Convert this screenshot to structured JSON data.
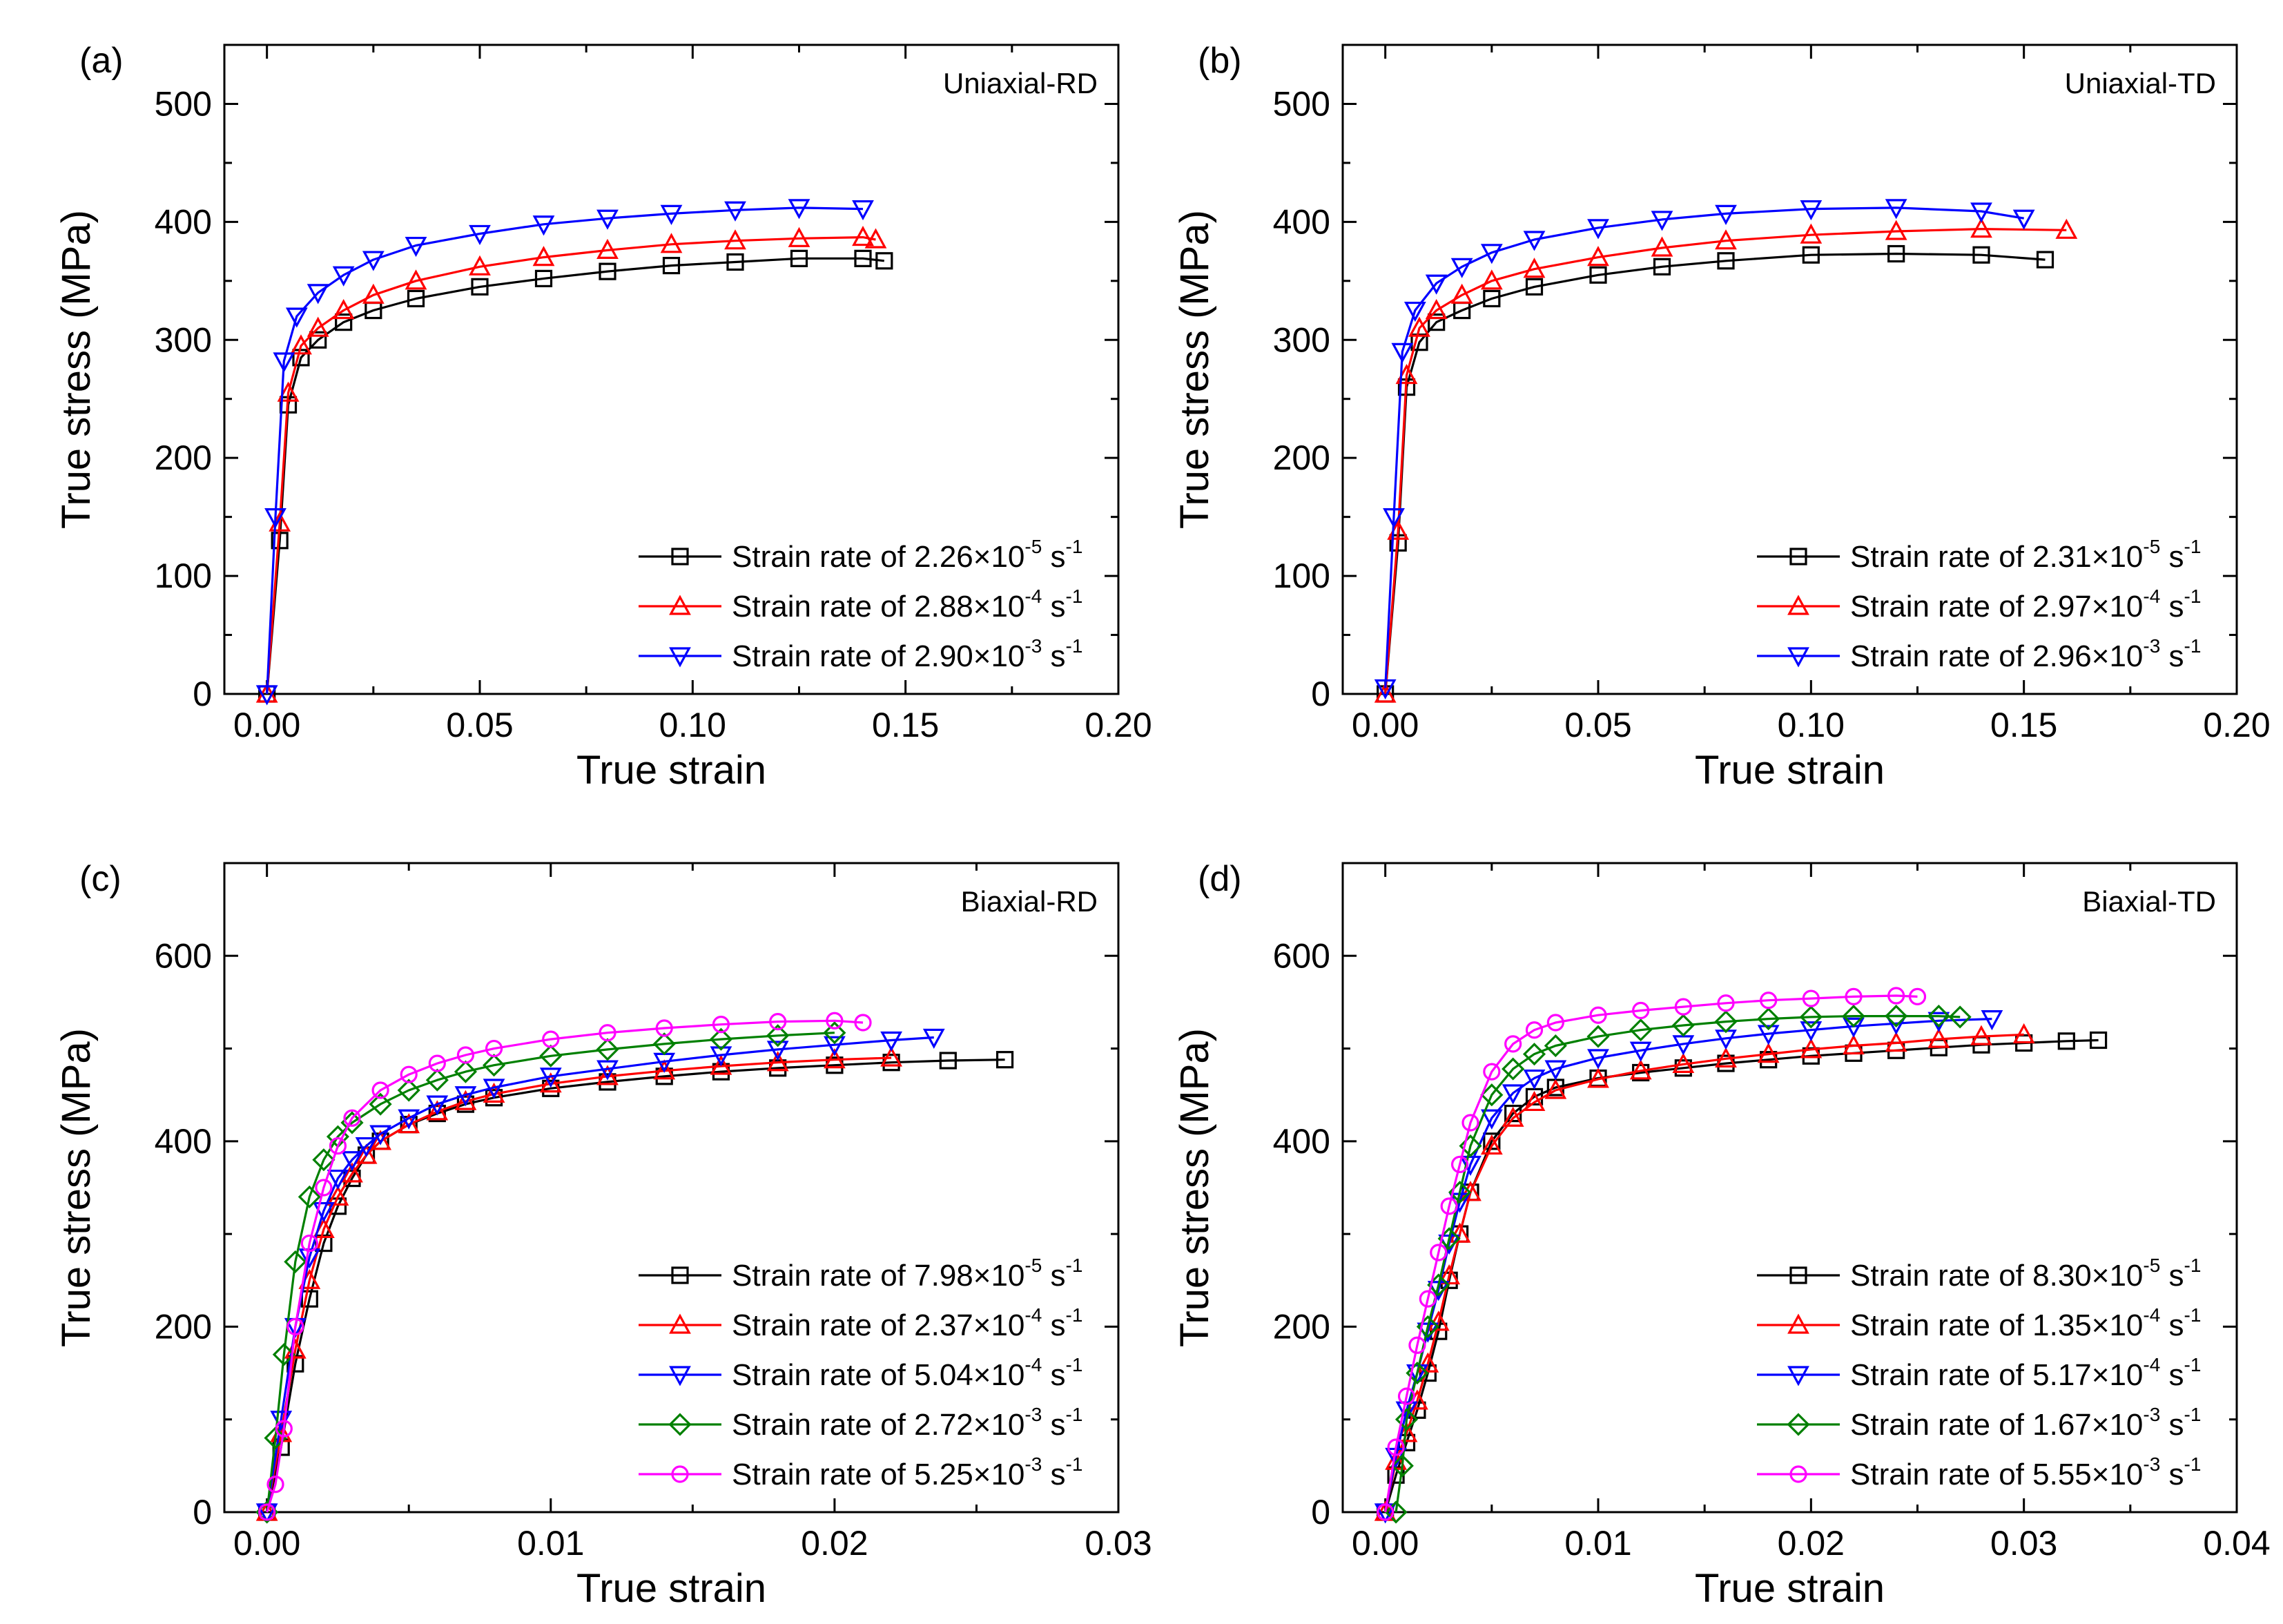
{
  "chart_data": [
    {
      "panel": "(a)",
      "type": "line",
      "tag": "Uniaxial-RD",
      "xlabel": "True strain",
      "ylabel": "True stress (MPa)",
      "xlim": [
        -0.01,
        0.2
      ],
      "ylim": [
        0,
        550
      ],
      "xticks": [
        0.0,
        0.05,
        0.1,
        0.15,
        0.2
      ],
      "xtick_labels": [
        "0.00",
        "0.05",
        "0.10",
        "0.15",
        "0.20"
      ],
      "yticks": [
        0,
        100,
        200,
        300,
        400,
        500
      ],
      "ytick_labels": [
        "0",
        "100",
        "200",
        "300",
        "400",
        "500"
      ],
      "legend_position": "lower-right",
      "series": [
        {
          "name": "Strain rate of 2.26×10-5 s-1",
          "label_text": "Strain rate of 2.26×10",
          "exp": "-5",
          "unit": " s",
          "unit_exp": "-1",
          "color": "#000000",
          "marker": "square",
          "x": [
            0,
            0.003,
            0.005,
            0.008,
            0.012,
            0.018,
            0.025,
            0.035,
            0.05,
            0.065,
            0.08,
            0.095,
            0.11,
            0.125,
            0.14,
            0.145
          ],
          "y": [
            0,
            130,
            245,
            285,
            300,
            315,
            325,
            335,
            345,
            352,
            358,
            363,
            366,
            369,
            369,
            367
          ]
        },
        {
          "name": "Strain rate of 2.88×10-4 s-1",
          "label_text": "Strain rate of 2.88×10",
          "exp": "-4",
          "unit": " s",
          "unit_exp": "-1",
          "color": "#ff0000",
          "marker": "triangle-up",
          "x": [
            0,
            0.003,
            0.005,
            0.008,
            0.012,
            0.018,
            0.025,
            0.035,
            0.05,
            0.065,
            0.08,
            0.095,
            0.11,
            0.125,
            0.14,
            0.143
          ],
          "y": [
            0,
            145,
            255,
            295,
            310,
            325,
            338,
            350,
            362,
            370,
            376,
            381,
            384,
            386,
            387,
            385
          ]
        },
        {
          "name": "Strain rate of 2.90×10-3 s-1",
          "label_text": "Strain rate of 2.90×10",
          "exp": "-3",
          "unit": " s",
          "unit_exp": "-1",
          "color": "#0000ff",
          "marker": "triangle-down",
          "x": [
            0,
            0.002,
            0.004,
            0.007,
            0.012,
            0.018,
            0.025,
            0.035,
            0.05,
            0.065,
            0.08,
            0.095,
            0.11,
            0.125,
            0.14
          ],
          "y": [
            0,
            150,
            282,
            320,
            340,
            355,
            368,
            380,
            390,
            398,
            403,
            407,
            410,
            412,
            411
          ]
        }
      ]
    },
    {
      "panel": "(b)",
      "type": "line",
      "tag": "Uniaxial-TD",
      "xlabel": "True strain",
      "ylabel": "True stress (MPa)",
      "xlim": [
        -0.01,
        0.2
      ],
      "ylim": [
        0,
        550
      ],
      "xticks": [
        0.0,
        0.05,
        0.1,
        0.15,
        0.2
      ],
      "xtick_labels": [
        "0.00",
        "0.05",
        "0.10",
        "0.15",
        "0.20"
      ],
      "yticks": [
        0,
        100,
        200,
        300,
        400,
        500
      ],
      "ytick_labels": [
        "0",
        "100",
        "200",
        "300",
        "400",
        "500"
      ],
      "legend_position": "lower-right",
      "series": [
        {
          "name": "Strain rate of 2.31×10-5 s-1",
          "label_text": "Strain rate of 2.31×10",
          "exp": "-5",
          "unit": " s",
          "unit_exp": "-1",
          "color": "#000000",
          "marker": "square",
          "x": [
            0,
            0.003,
            0.005,
            0.008,
            0.012,
            0.018,
            0.025,
            0.035,
            0.05,
            0.065,
            0.08,
            0.1,
            0.12,
            0.14,
            0.155
          ],
          "y": [
            0,
            128,
            260,
            298,
            315,
            325,
            335,
            345,
            355,
            362,
            367,
            372,
            373,
            372,
            368
          ]
        },
        {
          "name": "Strain rate of 2.97×10-4 s-1",
          "label_text": "Strain rate of 2.97×10",
          "exp": "-4",
          "unit": " s",
          "unit_exp": "-1",
          "color": "#ff0000",
          "marker": "triangle-up",
          "x": [
            0,
            0.003,
            0.005,
            0.008,
            0.012,
            0.018,
            0.025,
            0.035,
            0.05,
            0.065,
            0.08,
            0.1,
            0.12,
            0.14,
            0.16
          ],
          "y": [
            0,
            138,
            270,
            310,
            325,
            338,
            350,
            360,
            370,
            378,
            384,
            389,
            392,
            394,
            393
          ]
        },
        {
          "name": "Strain rate of 2.96×10-3 s-1",
          "label_text": "Strain rate of 2.96×10",
          "exp": "-3",
          "unit": " s",
          "unit_exp": "-1",
          "color": "#0000ff",
          "marker": "triangle-down",
          "x": [
            0,
            0.002,
            0.004,
            0.007,
            0.012,
            0.018,
            0.025,
            0.035,
            0.05,
            0.065,
            0.08,
            0.1,
            0.12,
            0.14,
            0.15
          ],
          "y": [
            5,
            150,
            290,
            325,
            348,
            362,
            374,
            385,
            395,
            402,
            407,
            411,
            412,
            409,
            403
          ]
        }
      ]
    },
    {
      "panel": "(c)",
      "type": "line",
      "tag": "Biaxial-RD",
      "xlabel": "True strain",
      "ylabel": "True stress (MPa)",
      "xlim": [
        -0.0015,
        0.03
      ],
      "ylim": [
        0,
        700
      ],
      "xticks": [
        0.0,
        0.01,
        0.02,
        0.03
      ],
      "xtick_labels": [
        "0.00",
        "0.01",
        "0.02",
        "0.03"
      ],
      "yticks": [
        0,
        200,
        400,
        600
      ],
      "ytick_labels": [
        "0",
        "200",
        "400",
        "600"
      ],
      "legend_position": "lower-right",
      "series": [
        {
          "name": "Strain rate of 7.98×10-5 s-1",
          "label_text": "Strain rate of 7.98×10",
          "exp": "-5",
          "unit": " s",
          "unit_exp": "-1",
          "color": "#000000",
          "marker": "square",
          "x": [
            0,
            0.0005,
            0.001,
            0.0015,
            0.002,
            0.0025,
            0.003,
            0.0035,
            0.004,
            0.005,
            0.006,
            0.007,
            0.008,
            0.01,
            0.012,
            0.014,
            0.016,
            0.018,
            0.02,
            0.022,
            0.024,
            0.026
          ],
          "y": [
            0,
            70,
            160,
            230,
            290,
            330,
            360,
            385,
            400,
            418,
            430,
            440,
            447,
            457,
            464,
            470,
            475,
            479,
            482,
            485,
            487,
            488
          ]
        },
        {
          "name": "Strain rate of 2.37×10-4 s-1",
          "label_text": "Strain rate of 2.37×10",
          "exp": "-4",
          "unit": " s",
          "unit_exp": "-1",
          "color": "#ff0000",
          "marker": "triangle-up",
          "x": [
            0,
            0.0005,
            0.001,
            0.0015,
            0.002,
            0.0025,
            0.003,
            0.0035,
            0.004,
            0.005,
            0.006,
            0.007,
            0.008,
            0.01,
            0.012,
            0.014,
            0.016,
            0.018,
            0.02,
            0.022
          ],
          "y": [
            0,
            85,
            175,
            250,
            305,
            340,
            365,
            385,
            400,
            418,
            432,
            443,
            451,
            462,
            470,
            476,
            481,
            485,
            488,
            490
          ]
        },
        {
          "name": "Strain rate of 5.04×10-4 s-1",
          "label_text": "Strain rate of 5.04×10",
          "exp": "-4",
          "unit": " s",
          "unit_exp": "-1",
          "color": "#0000ff",
          "marker": "triangle-down",
          "x": [
            0,
            0.0005,
            0.001,
            0.0015,
            0.002,
            0.0025,
            0.003,
            0.0035,
            0.004,
            0.005,
            0.006,
            0.007,
            0.008,
            0.01,
            0.012,
            0.014,
            0.016,
            0.018,
            0.02,
            0.022,
            0.0235
          ],
          "y": [
            0,
            100,
            200,
            275,
            325,
            360,
            380,
            395,
            408,
            425,
            440,
            450,
            458,
            470,
            478,
            486,
            493,
            499,
            504,
            509,
            512
          ]
        },
        {
          "name": "Strain rate of 2.72×10-3 s-1",
          "label_text": "Strain rate of 2.72×10",
          "exp": "-3",
          "unit": " s",
          "unit_exp": "-1",
          "color": "#008000",
          "marker": "diamond",
          "x": [
            0,
            0.0003,
            0.0006,
            0.001,
            0.0015,
            0.002,
            0.0025,
            0.003,
            0.004,
            0.005,
            0.006,
            0.007,
            0.008,
            0.01,
            0.012,
            0.014,
            0.016,
            0.018,
            0.02
          ],
          "y": [
            0,
            80,
            170,
            270,
            340,
            380,
            405,
            420,
            440,
            455,
            466,
            475,
            482,
            492,
            499,
            505,
            510,
            514,
            517
          ]
        },
        {
          "name": "Strain rate of 5.25×10-3 s-1",
          "label_text": "Strain rate of 5.25×10",
          "exp": "-3",
          "unit": " s",
          "unit_exp": "-1",
          "color": "#ff00ff",
          "marker": "circle",
          "x": [
            0,
            0.0003,
            0.0006,
            0.001,
            0.0015,
            0.002,
            0.0025,
            0.003,
            0.004,
            0.005,
            0.006,
            0.007,
            0.008,
            0.01,
            0.012,
            0.014,
            0.016,
            0.018,
            0.02,
            0.021
          ],
          "y": [
            0,
            30,
            90,
            200,
            290,
            350,
            395,
            425,
            455,
            472,
            484,
            493,
            500,
            510,
            517,
            522,
            526,
            529,
            530,
            528
          ]
        }
      ]
    },
    {
      "panel": "(d)",
      "type": "line",
      "tag": "Biaxial-TD",
      "xlabel": "True strain",
      "ylabel": "True stress (MPa)",
      "xlim": [
        -0.002,
        0.04
      ],
      "ylim": [
        0,
        700
      ],
      "xticks": [
        0.0,
        0.01,
        0.02,
        0.03,
        0.04
      ],
      "xtick_labels": [
        "0.00",
        "0.01",
        "0.02",
        "0.03",
        "0.04"
      ],
      "yticks": [
        0,
        200,
        400,
        600
      ],
      "ytick_labels": [
        "0",
        "200",
        "400",
        "600"
      ],
      "legend_position": "lower-right",
      "series": [
        {
          "name": "Strain rate of 8.30×10-5 s-1",
          "label_text": "Strain rate of 8.30×10",
          "exp": "-5",
          "unit": " s",
          "unit_exp": "-1",
          "color": "#000000",
          "marker": "square",
          "x": [
            0,
            0.0005,
            0.001,
            0.0015,
            0.002,
            0.0025,
            0.003,
            0.0035,
            0.004,
            0.005,
            0.006,
            0.007,
            0.008,
            0.01,
            0.012,
            0.014,
            0.016,
            0.018,
            0.02,
            0.022,
            0.024,
            0.026,
            0.028,
            0.03,
            0.032,
            0.0335
          ],
          "y": [
            0,
            40,
            75,
            110,
            150,
            195,
            250,
            300,
            345,
            400,
            430,
            448,
            458,
            468,
            474,
            479,
            484,
            488,
            492,
            495,
            498,
            501,
            504,
            506,
            508,
            509
          ]
        },
        {
          "name": "Strain rate of 1.35×10-4 s-1",
          "label_text": "Strain rate of 1.35×10",
          "exp": "-4",
          "unit": " s",
          "unit_exp": "-1",
          "color": "#ff0000",
          "marker": "triangle-up",
          "x": [
            0,
            0.0005,
            0.001,
            0.0015,
            0.002,
            0.0025,
            0.003,
            0.0035,
            0.004,
            0.005,
            0.006,
            0.007,
            0.008,
            0.01,
            0.012,
            0.014,
            0.016,
            0.018,
            0.02,
            0.022,
            0.024,
            0.026,
            0.028,
            0.03
          ],
          "y": [
            0,
            55,
            85,
            120,
            160,
            205,
            255,
            300,
            345,
            395,
            425,
            442,
            455,
            467,
            476,
            483,
            489,
            494,
            499,
            503,
            506,
            510,
            513,
            515
          ]
        },
        {
          "name": "Strain rate of 5.17×10-4 s-1",
          "label_text": "Strain rate of 5.17×10",
          "exp": "-4",
          "unit": " s",
          "unit_exp": "-1",
          "color": "#0000ff",
          "marker": "triangle-down",
          "x": [
            0,
            0.0005,
            0.001,
            0.0015,
            0.002,
            0.0025,
            0.003,
            0.0035,
            0.004,
            0.005,
            0.006,
            0.007,
            0.008,
            0.01,
            0.012,
            0.014,
            0.016,
            0.018,
            0.02,
            0.022,
            0.024,
            0.026,
            0.0285
          ],
          "y": [
            0,
            60,
            110,
            150,
            195,
            240,
            290,
            335,
            375,
            425,
            452,
            468,
            478,
            490,
            498,
            505,
            511,
            516,
            520,
            524,
            527,
            530,
            532
          ]
        },
        {
          "name": "Strain rate of 1.67×10-3 s-1",
          "label_text": "Strain rate of 1.67×10",
          "exp": "-3",
          "unit": " s",
          "unit_exp": "-1",
          "color": "#008000",
          "marker": "diamond",
          "x": [
            0.0005,
            0.0008,
            0.001,
            0.0015,
            0.002,
            0.0025,
            0.003,
            0.0035,
            0.004,
            0.005,
            0.006,
            0.007,
            0.008,
            0.01,
            0.012,
            0.014,
            0.016,
            0.018,
            0.02,
            0.022,
            0.024,
            0.026,
            0.027
          ],
          "y": [
            0,
            50,
            100,
            150,
            200,
            245,
            295,
            345,
            395,
            450,
            478,
            494,
            503,
            513,
            520,
            525,
            529,
            532,
            534,
            535,
            535,
            535,
            534
          ]
        },
        {
          "name": "Strain rate of 5.55×10-3 s-1",
          "label_text": "Strain rate of 5.55×10",
          "exp": "-3",
          "unit": " s",
          "unit_exp": "-1",
          "color": "#ff00ff",
          "marker": "circle",
          "x": [
            0,
            0.0005,
            0.001,
            0.0015,
            0.002,
            0.0025,
            0.003,
            0.0035,
            0.004,
            0.005,
            0.006,
            0.007,
            0.008,
            0.01,
            0.012,
            0.014,
            0.016,
            0.018,
            0.02,
            0.022,
            0.024,
            0.025
          ],
          "y": [
            0,
            70,
            125,
            180,
            230,
            280,
            330,
            375,
            420,
            475,
            505,
            520,
            528,
            536,
            541,
            545,
            549,
            552,
            554,
            556,
            557,
            556
          ]
        }
      ]
    }
  ]
}
